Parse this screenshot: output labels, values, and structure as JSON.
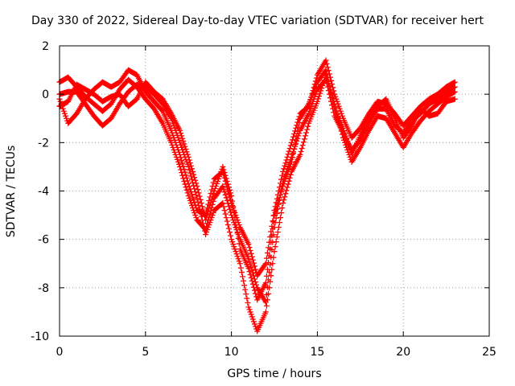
{
  "chart_data": {
    "type": "scatter",
    "title": "Day 330 of 2022, Sidereal Day-to-day VTEC variation (SDTVAR) for receiver hert",
    "xlabel": "GPS time / hours",
    "ylabel": "SDTVAR / TECUs",
    "xlim": [
      0,
      25
    ],
    "ylim": [
      -10,
      2
    ],
    "xticks": [
      "0",
      "5",
      "10",
      "15",
      "20",
      "25"
    ],
    "yticks": [
      "2",
      "0",
      "-2",
      "-4",
      "-6",
      "-8",
      "-10"
    ],
    "grid": true,
    "marker": "plus",
    "color": "#ff0000",
    "series": [
      {
        "x": [
          0.0,
          0.5,
          1.0,
          1.5,
          2.0,
          2.5,
          3.0,
          3.5,
          4.0,
          4.5,
          5.0,
          5.5,
          6.0,
          6.5,
          7.0,
          7.5,
          8.0,
          8.5,
          9.0,
          9.5,
          10.0,
          10.5,
          11.0,
          11.5,
          12.0,
          12.5,
          13.0,
          13.5,
          14.0,
          14.5,
          15.0,
          15.5,
          16.0,
          16.5,
          17.0,
          17.5,
          18.0,
          18.5,
          19.0,
          19.5,
          20.0,
          20.5,
          21.0,
          21.5,
          22.0,
          22.5,
          23.0
        ],
        "y": [
          0.5,
          0.7,
          0.3,
          -0.1,
          -0.4,
          -0.7,
          -0.4,
          0.2,
          0.6,
          0.3,
          -0.2,
          -0.6,
          -1.2,
          -2.0,
          -3.0,
          -4.2,
          -5.2,
          -5.6,
          -4.3,
          -3.8,
          -5.0,
          -6.0,
          -6.8,
          -8.0,
          -8.6,
          -5.5,
          -3.6,
          -2.6,
          -1.5,
          -0.8,
          0.2,
          0.6,
          -0.9,
          -1.6,
          -2.3,
          -1.9,
          -1.2,
          -0.6,
          -0.6,
          -1.3,
          -1.6,
          -1.1,
          -0.8,
          -0.4,
          -0.2,
          0.1,
          0.3
        ]
      },
      {
        "x": [
          0.0,
          0.5,
          1.0,
          1.5,
          2.0,
          2.5,
          3.0,
          3.5,
          4.0,
          4.5,
          5.0,
          5.5,
          6.0,
          6.5,
          7.0,
          7.5,
          8.0,
          8.5,
          9.0,
          9.5,
          10.0,
          10.5,
          11.0,
          11.5,
          12.0,
          12.5,
          13.0,
          13.5,
          14.0,
          14.5,
          15.0,
          15.5,
          16.0,
          16.5,
          17.0,
          17.5,
          18.0,
          18.5,
          19.0,
          19.5,
          20.0,
          20.5,
          21.0,
          21.5,
          22.0,
          22.5,
          23.0
        ],
        "y": [
          -0.2,
          -1.2,
          -0.8,
          -0.2,
          0.2,
          0.5,
          0.3,
          0.5,
          1.0,
          0.8,
          0.1,
          -0.3,
          -0.7,
          -1.5,
          -2.5,
          -3.7,
          -4.8,
          -5.0,
          -3.5,
          -3.2,
          -4.5,
          -5.5,
          -6.2,
          -7.5,
          -7.0,
          -4.8,
          -3.2,
          -2.0,
          -0.8,
          -0.5,
          0.8,
          1.4,
          0.0,
          -1.0,
          -1.8,
          -1.4,
          -0.8,
          -0.3,
          -0.4,
          -0.8,
          -1.3,
          -0.9,
          -0.5,
          -0.2,
          0.0,
          0.3,
          0.5
        ]
      },
      {
        "x": [
          0.0,
          0.5,
          1.0,
          1.5,
          2.0,
          2.5,
          3.0,
          3.5,
          4.0,
          4.5,
          5.0,
          5.5,
          6.0,
          6.5,
          7.0,
          7.5,
          8.0,
          8.5,
          9.0,
          9.5,
          10.0,
          10.5,
          11.0,
          11.5,
          12.0,
          12.5,
          13.0,
          13.5,
          14.0,
          14.5,
          15.0,
          15.5,
          16.0,
          16.5,
          17.0,
          17.5,
          18.0,
          18.5,
          19.0,
          19.5,
          20.0,
          20.5,
          21.0,
          21.5,
          22.0,
          22.5,
          23.0
        ],
        "y": [
          0.0,
          0.1,
          0.1,
          -0.4,
          -0.9,
          -1.3,
          -1.0,
          -0.4,
          0.1,
          0.4,
          0.3,
          0.0,
          -0.4,
          -1.0,
          -2.0,
          -3.0,
          -4.3,
          -5.8,
          -4.8,
          -4.5,
          -6.0,
          -7.0,
          -8.8,
          -9.8,
          -9.0,
          -6.5,
          -4.5,
          -3.2,
          -2.5,
          -1.2,
          -0.3,
          0.8,
          -0.4,
          -1.8,
          -2.8,
          -2.2,
          -1.5,
          -0.9,
          -1.0,
          -1.6,
          -2.2,
          -1.6,
          -1.1,
          -0.7,
          -0.4,
          -0.1,
          0.1
        ]
      },
      {
        "x": [
          0.0,
          0.5,
          1.0,
          1.5,
          2.0,
          2.5,
          3.0,
          3.5,
          4.0,
          4.5,
          5.0,
          5.5,
          6.0,
          6.5,
          7.0,
          7.5,
          8.0,
          8.5,
          9.0,
          9.5,
          10.0,
          10.5,
          11.0,
          11.5,
          12.0,
          12.5,
          13.0,
          13.5,
          14.0,
          14.5,
          15.0,
          15.5,
          16.0,
          16.5,
          17.0,
          17.5,
          18.0,
          18.5,
          19.0,
          19.5,
          20.0,
          20.5,
          21.0,
          21.5,
          22.0,
          22.5,
          23.0
        ],
        "y": [
          -0.5,
          -0.3,
          0.4,
          0.2,
          0.0,
          -0.3,
          -0.1,
          0.0,
          -0.5,
          -0.2,
          0.5,
          0.1,
          -0.2,
          -0.8,
          -1.5,
          -2.6,
          -3.8,
          -5.2,
          -4.0,
          -3.0,
          -4.2,
          -6.4,
          -7.2,
          -8.5,
          -7.8,
          -5.0,
          -3.8,
          -2.8,
          -1.0,
          -0.4,
          0.5,
          1.0,
          -0.6,
          -1.4,
          -2.5,
          -1.7,
          -1.0,
          -0.5,
          -0.2,
          -1.0,
          -1.8,
          -1.3,
          -0.6,
          -0.9,
          -0.8,
          -0.3,
          -0.2
        ]
      }
    ]
  }
}
